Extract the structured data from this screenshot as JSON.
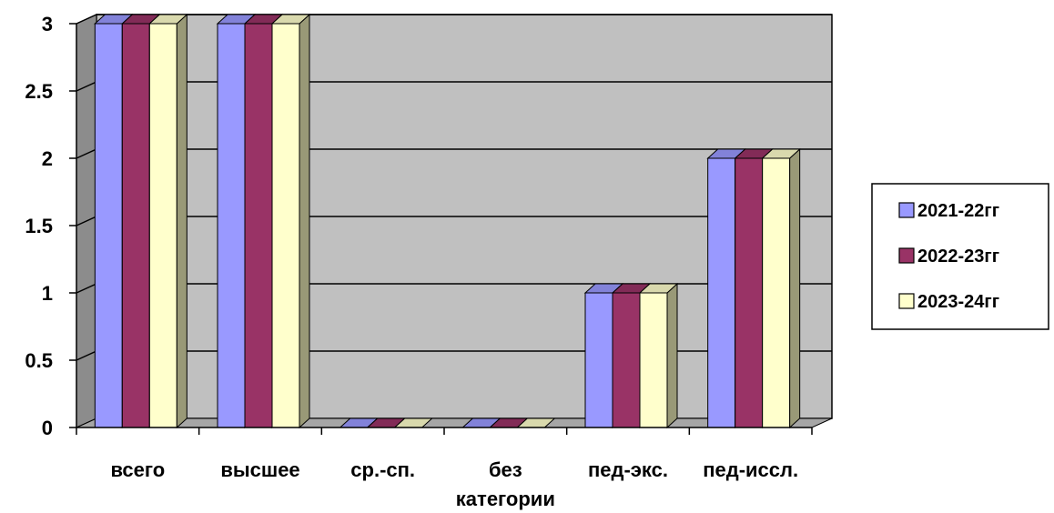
{
  "chart_data": {
    "type": "bar",
    "categories": [
      "всего",
      "высшее",
      "ср.-сп.",
      "без\nкатегории",
      "пед-экс.",
      "пед-иссл."
    ],
    "series": [
      {
        "name": "2021-22гг",
        "color": "#9999ff",
        "values": [
          3,
          3,
          0,
          0,
          1,
          2
        ]
      },
      {
        "name": "2022-23гг",
        "color": "#993366",
        "values": [
          3,
          3,
          0,
          0,
          1,
          2
        ]
      },
      {
        "name": "2023-24гг",
        "color": "#ffffcc",
        "values": [
          3,
          3,
          0,
          0,
          1,
          2
        ]
      }
    ],
    "yticks": [
      "0",
      "0.5",
      "1",
      "1.5",
      "2",
      "2.5",
      "3"
    ],
    "ylim": [
      0,
      3
    ],
    "grid": true,
    "legend": "right",
    "colors": {
      "wall": "#c0c0c0",
      "floor": "#a6a6a6",
      "depth": "#999977"
    }
  }
}
